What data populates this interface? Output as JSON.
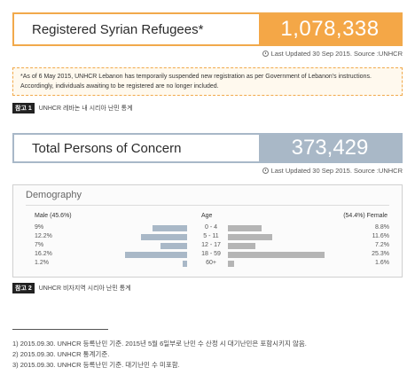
{
  "registered": {
    "label": "Registered Syrian Refugees*",
    "value": "1,078,338",
    "updated": "Last Updated 30 Sep 2015.  Source :UNHCR"
  },
  "note": {
    "text": "*As of 6 May 2015, UNHCR Lebanon has temporarily suspended new registration as per Government of Lebanon's instructions. Accordingly, individuals awaiting to be registered are no longer included."
  },
  "caption1": {
    "tag": "참고 1",
    "text": "UNHCR 레바논 내 시리아 난민 통계"
  },
  "concern": {
    "label": "Total Persons of Concern",
    "value": "373,429",
    "updated": "Last Updated 30 Sep 2015.  Source :UNHCR"
  },
  "demography": {
    "title": "Demography",
    "male_header": "Male (45.6%)",
    "age_header": "Age",
    "female_header": "(54.4%) Female",
    "rows": [
      {
        "age": "0 - 4",
        "male": "9%",
        "female": "8.8%",
        "male_val": 9,
        "female_val": 8.8
      },
      {
        "age": "5 - 11",
        "male": "12.2%",
        "female": "11.6%",
        "male_val": 12.2,
        "female_val": 11.6
      },
      {
        "age": "12 - 17",
        "male": "7%",
        "female": "7.2%",
        "male_val": 7,
        "female_val": 7.2
      },
      {
        "age": "18 - 59",
        "male": "16.2%",
        "female": "25.3%",
        "male_val": 16.2,
        "female_val": 25.3
      },
      {
        "age": "60+",
        "male": "1.2%",
        "female": "1.6%",
        "male_val": 1.2,
        "female_val": 1.6
      }
    ]
  },
  "caption2": {
    "tag": "참고 2",
    "text": "UNHCR 비자지역 시리아 난민 통계"
  },
  "footnotes": [
    "1) 2015.09.30. UNHCR 등록난민 기준. 2015년 5월 6일부로 난민 수 산정 시 대기난민은 포함시키지 않음.",
    "2) 2015.09.30. UNHCR 통계기준.",
    "3) 2015.09.30. UNHCR 등록난민 기준. 대기난민 수 미포함."
  ],
  "colors": {
    "orange": "#f4a747",
    "slate": "#a9b8c7",
    "grey_bar": "#b5b5b5"
  }
}
